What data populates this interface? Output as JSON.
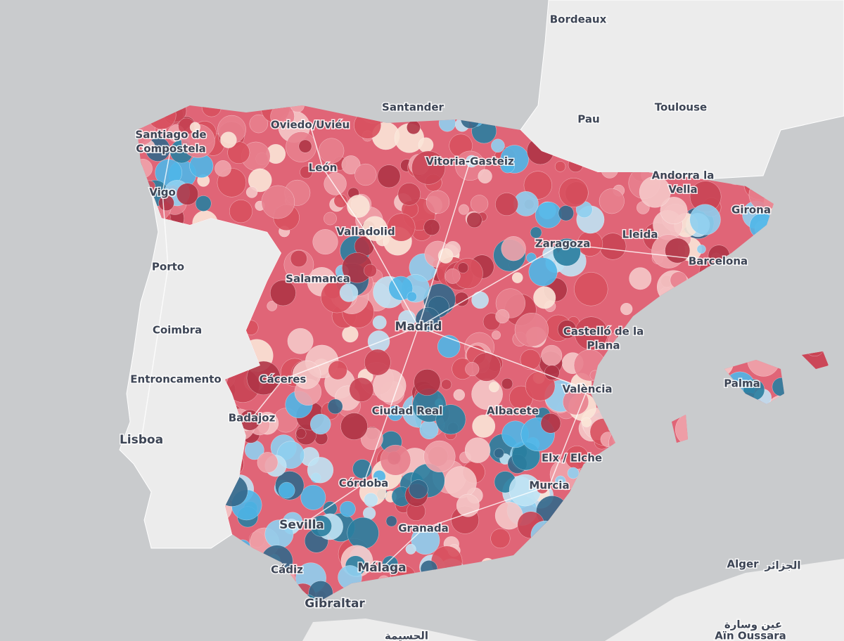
{
  "map": {
    "labels": [
      {
        "lines": [
          "Bordeaux"
        ]
      },
      {
        "lines": [
          "Santander"
        ]
      },
      {
        "lines": [
          "Pau"
        ]
      },
      {
        "lines": [
          "Toulouse"
        ]
      },
      {
        "lines": [
          "Oviedo/Uviéu"
        ]
      },
      {
        "lines": [
          "Santiago de",
          "Compostela"
        ]
      },
      {
        "lines": [
          "Vitoria-Gasteiz"
        ]
      },
      {
        "lines": [
          "León"
        ]
      },
      {
        "lines": [
          "Andorra la",
          "Vella"
        ]
      },
      {
        "lines": [
          "Vigo"
        ]
      },
      {
        "lines": [
          "Girona"
        ]
      },
      {
        "lines": [
          "Valladolid"
        ]
      },
      {
        "lines": [
          "Lleida"
        ]
      },
      {
        "lines": [
          "Zaragoza"
        ]
      },
      {
        "lines": [
          "Barcelona"
        ]
      },
      {
        "lines": [
          "Porto"
        ]
      },
      {
        "lines": [
          "Salamanca"
        ]
      },
      {
        "lines": [
          "Madrid"
        ]
      },
      {
        "lines": [
          "Coimbra"
        ]
      },
      {
        "lines": [
          "Castelló de la",
          "Plana"
        ]
      },
      {
        "lines": [
          "Entroncamento"
        ]
      },
      {
        "lines": [
          "Cáceres"
        ]
      },
      {
        "lines": [
          "València"
        ]
      },
      {
        "lines": [
          "Palma"
        ]
      },
      {
        "lines": [
          "Ciudad Real"
        ]
      },
      {
        "lines": [
          "Albacete"
        ]
      },
      {
        "lines": [
          "Badajoz"
        ]
      },
      {
        "lines": [
          "Lisboa"
        ]
      },
      {
        "lines": [
          "Elx / Elche"
        ]
      },
      {
        "lines": [
          "Murcia"
        ]
      },
      {
        "lines": [
          "Córdoba"
        ]
      },
      {
        "lines": [
          "Sevilla"
        ]
      },
      {
        "lines": [
          "Granada"
        ]
      },
      {
        "lines": [
          "Cádiz"
        ]
      },
      {
        "lines": [
          "Málaga"
        ]
      },
      {
        "lines": [
          "Alger"
        ]
      },
      {
        "lines": [
          "الجزائر"
        ]
      },
      {
        "lines": [
          "Gibraltar"
        ]
      },
      {
        "lines": [
          "عين وسارة"
        ]
      },
      {
        "lines": [
          "Aïn Oussara"
        ]
      },
      {
        "lines": [
          "الحسيمة"
        ]
      }
    ]
  }
}
